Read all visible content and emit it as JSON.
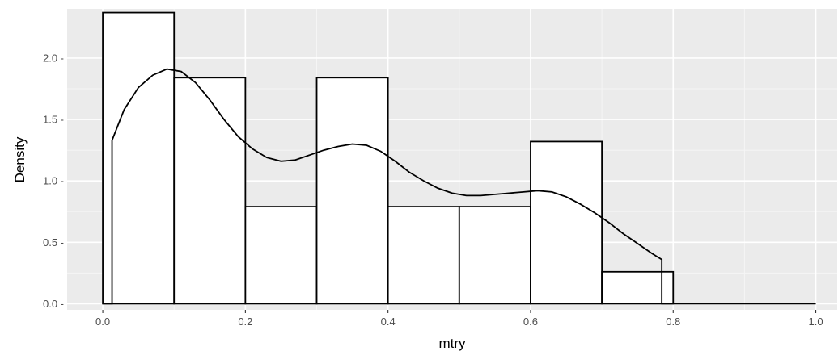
{
  "chart_data": {
    "type": "histogram",
    "title": "",
    "xlabel": "mtry",
    "ylabel": "Density",
    "xlim": [
      -0.05,
      1.03
    ],
    "ylim": [
      -0.05,
      2.4
    ],
    "x_ticks": [
      0.0,
      0.2,
      0.4,
      0.6,
      0.8,
      1.0
    ],
    "x_tick_labels": [
      "0.0",
      "0.2",
      "0.4",
      "0.6",
      "0.8",
      "1.0"
    ],
    "y_ticks": [
      0.0,
      0.5,
      1.0,
      1.5,
      2.0
    ],
    "y_tick_labels": [
      "0.0 -",
      "0.5 -",
      "1.0 -",
      "1.5 -",
      "2.0 -"
    ],
    "grid": true,
    "bins": [
      {
        "x0": 0.0,
        "x1": 0.1,
        "density": 2.37
      },
      {
        "x0": 0.1,
        "x1": 0.2,
        "density": 1.84
      },
      {
        "x0": 0.2,
        "x1": 0.3,
        "density": 0.79
      },
      {
        "x0": 0.3,
        "x1": 0.4,
        "density": 1.84
      },
      {
        "x0": 0.4,
        "x1": 0.5,
        "density": 0.79
      },
      {
        "x0": 0.5,
        "x1": 0.6,
        "density": 0.79
      },
      {
        "x0": 0.6,
        "x1": 0.7,
        "density": 1.32
      },
      {
        "x0": 0.7,
        "x1": 0.8,
        "density": 0.26
      }
    ],
    "density_curve": {
      "x": [
        0.013,
        0.03,
        0.05,
        0.07,
        0.09,
        0.11,
        0.13,
        0.15,
        0.17,
        0.19,
        0.21,
        0.23,
        0.25,
        0.27,
        0.29,
        0.31,
        0.33,
        0.35,
        0.37,
        0.39,
        0.41,
        0.43,
        0.45,
        0.47,
        0.49,
        0.51,
        0.53,
        0.55,
        0.57,
        0.59,
        0.61,
        0.63,
        0.65,
        0.67,
        0.69,
        0.71,
        0.73,
        0.75,
        0.77,
        0.784
      ],
      "y": [
        1.33,
        1.58,
        1.76,
        1.86,
        1.91,
        1.89,
        1.8,
        1.66,
        1.5,
        1.36,
        1.26,
        1.19,
        1.16,
        1.17,
        1.21,
        1.25,
        1.28,
        1.3,
        1.29,
        1.24,
        1.16,
        1.07,
        1.0,
        0.94,
        0.9,
        0.88,
        0.88,
        0.89,
        0.9,
        0.91,
        0.92,
        0.91,
        0.87,
        0.81,
        0.74,
        0.66,
        0.57,
        0.49,
        0.41,
        0.36
      ],
      "baseline_x_range": [
        0.0,
        1.0
      ]
    }
  }
}
